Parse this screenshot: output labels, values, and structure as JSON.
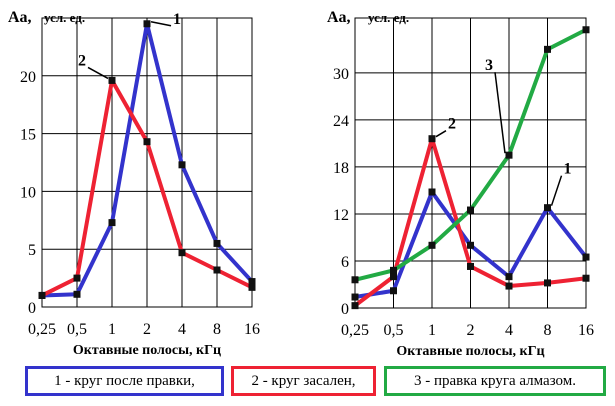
{
  "chart_data": [
    {
      "type": "line",
      "ylabel_bold": "Aa,",
      "ylabel_unit": "усл. ед.",
      "xlabel": "Октавные полосы, кГц",
      "categories": [
        "0,25",
        "0,5",
        "1",
        "2",
        "4",
        "8",
        "16"
      ],
      "yticks": [
        0,
        5,
        10,
        15,
        20
      ],
      "ylim": [
        0,
        25
      ],
      "grid": true,
      "series": [
        {
          "name": "1",
          "color": "#3333cc",
          "values": [
            1.0,
            1.1,
            7.3,
            24.5,
            12.3,
            5.5,
            2.2
          ]
        },
        {
          "name": "2",
          "color": "#ee2233",
          "values": [
            1.0,
            2.5,
            19.6,
            14.3,
            4.7,
            3.2,
            1.7
          ]
        }
      ]
    },
    {
      "type": "line",
      "ylabel_bold": "Aa,",
      "ylabel_unit": "усл. ед.",
      "xlabel": "Октавные полосы, кГц",
      "categories": [
        "0,25",
        "0,5",
        "1",
        "2",
        "4",
        "8",
        "16"
      ],
      "yticks": [
        0,
        6,
        12,
        18,
        24,
        30
      ],
      "ylim": [
        0,
        37
      ],
      "grid": true,
      "series": [
        {
          "name": "1",
          "color": "#3333cc",
          "values": [
            1.4,
            2.2,
            14.8,
            8.0,
            4.0,
            12.8,
            6.5
          ]
        },
        {
          "name": "2",
          "color": "#ee2233",
          "values": [
            0.3,
            4.0,
            21.6,
            5.3,
            2.8,
            3.2,
            3.8
          ]
        },
        {
          "name": "3",
          "color": "#22aa44",
          "values": [
            3.6,
            4.8,
            8.0,
            12.5,
            19.5,
            33.0,
            35.5
          ]
        }
      ]
    }
  ],
  "legend": [
    {
      "label": "1 - круг после правки,",
      "color": "#3333cc"
    },
    {
      "label": "2 - круг засален,",
      "color": "#ee2233"
    },
    {
      "label": "3 - правка круга алмазом.",
      "color": "#22aa44"
    }
  ]
}
